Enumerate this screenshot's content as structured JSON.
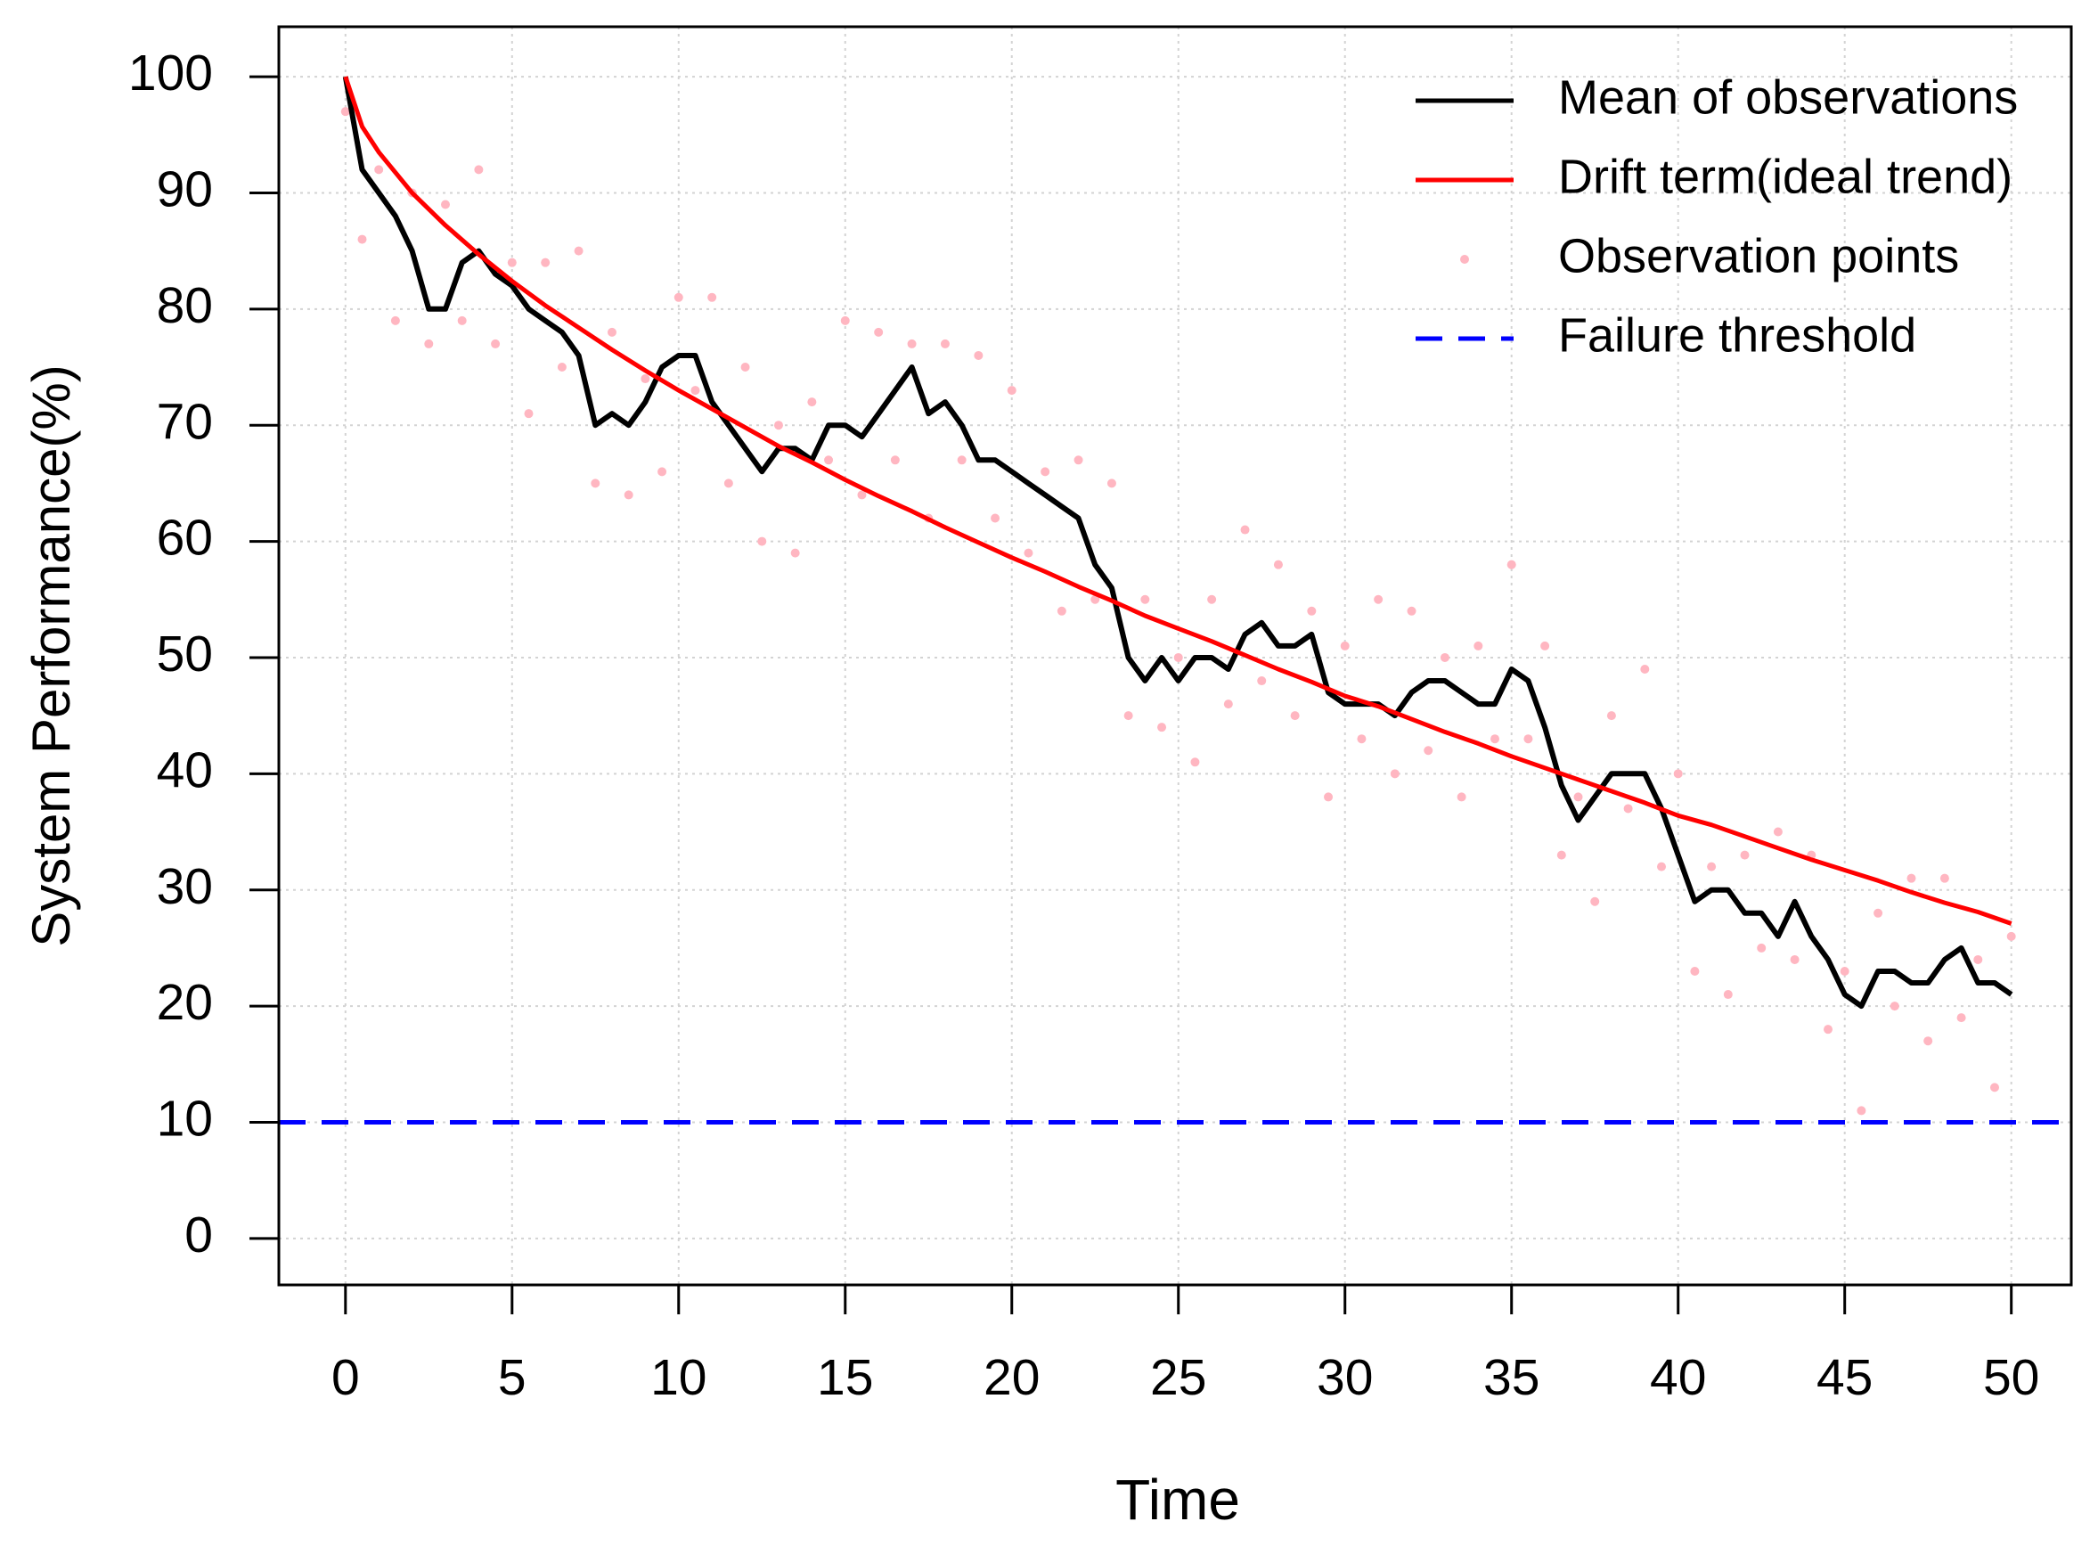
{
  "chart_data": {
    "type": "line",
    "xlabel": "Time",
    "ylabel": "System Performance(%)",
    "xlim": [
      -2,
      51.8
    ],
    "ylim": [
      -4,
      104.3
    ],
    "xticks": [
      0,
      5,
      10,
      15,
      20,
      25,
      30,
      35,
      40,
      45,
      50
    ],
    "yticks": [
      0,
      10,
      20,
      30,
      40,
      50,
      60,
      70,
      80,
      90,
      100
    ],
    "grid": true,
    "legend": "upper right",
    "series": [
      {
        "name": "Mean of observations",
        "color": "#000000",
        "kind": "line",
        "x": [
          0,
          0.5,
          1,
          1.5,
          2,
          2.5,
          3,
          3.5,
          4,
          4.5,
          5,
          5.5,
          6,
          6.5,
          7,
          7.5,
          8,
          8.5,
          9,
          9.5,
          10,
          10.5,
          11,
          11.5,
          12,
          12.5,
          13,
          13.5,
          14,
          14.5,
          15,
          15.5,
          16,
          16.5,
          17,
          17.5,
          18,
          18.5,
          19,
          19.5,
          20,
          20.5,
          21,
          21.5,
          22,
          22.5,
          23,
          23.5,
          24,
          24.5,
          25,
          25.5,
          26,
          26.5,
          27,
          27.5,
          28,
          28.5,
          29,
          29.5,
          30,
          30.5,
          31,
          31.5,
          32,
          32.5,
          33,
          33.5,
          34,
          34.5,
          35,
          35.5,
          36,
          36.5,
          37,
          37.5,
          38,
          38.5,
          39,
          39.5,
          40,
          40.5,
          41,
          41.5,
          42,
          42.5,
          43,
          43.5,
          44,
          44.5,
          45,
          45.5,
          46,
          46.5,
          47,
          47.5,
          48,
          48.5,
          49,
          49.5,
          50
        ],
        "values": [
          100,
          92,
          90,
          88,
          85,
          80,
          80,
          84,
          85,
          83,
          82,
          80,
          79,
          78,
          76,
          70,
          71,
          70,
          72,
          75,
          76,
          76,
          72,
          70,
          68,
          66,
          68,
          68,
          67,
          70,
          70,
          69,
          71,
          73,
          75,
          71,
          72,
          70,
          67,
          67,
          66,
          65,
          64,
          63,
          62,
          58,
          56,
          50,
          48,
          50,
          48,
          50,
          50,
          49,
          52,
          53,
          51,
          51,
          52,
          47,
          46,
          46,
          46,
          45,
          47,
          48,
          48,
          47,
          46,
          46,
          49,
          48,
          44,
          39,
          36,
          38,
          40,
          40,
          40,
          37,
          33,
          29,
          30,
          30,
          28,
          28,
          26,
          29,
          26,
          24,
          21,
          20,
          23,
          23,
          22,
          22,
          24,
          25,
          22,
          22,
          21
        ]
      },
      {
        "name": "Drift term(ideal trend)",
        "color": "#ff0000",
        "kind": "line",
        "x": [
          0,
          0.5,
          1,
          2,
          3,
          4,
          5,
          6,
          7,
          8,
          9,
          10,
          11,
          12,
          13,
          14,
          15,
          16,
          17,
          18,
          19,
          20,
          21,
          22,
          23,
          24,
          25,
          26,
          27,
          28,
          29,
          30,
          31,
          32,
          33,
          34,
          35,
          36,
          37,
          38,
          39,
          40,
          41,
          42,
          43,
          44,
          45,
          46,
          47,
          48,
          49,
          50
        ],
        "values": [
          100,
          95.7,
          93.5,
          90.0,
          87.2,
          84.7,
          82.4,
          80.3,
          78.4,
          76.5,
          74.7,
          73.0,
          71.4,
          69.8,
          68.2,
          66.8,
          65.3,
          63.9,
          62.6,
          61.2,
          59.9,
          58.6,
          57.4,
          56.1,
          54.9,
          53.6,
          52.5,
          51.4,
          50.2,
          49.0,
          47.9,
          46.7,
          45.8,
          44.7,
          43.6,
          42.6,
          41.5,
          40.5,
          39.5,
          38.5,
          37.5,
          36.4,
          35.6,
          34.6,
          33.6,
          32.6,
          31.7,
          30.8,
          29.8,
          28.9,
          28.1,
          27.1
        ]
      },
      {
        "name": "Observation points",
        "color": "#ffb6c1",
        "kind": "points",
        "x": [
          0,
          0.5,
          1,
          1.5,
          2,
          2.5,
          3,
          3.5,
          4,
          4.5,
          5,
          5.5,
          6,
          6.5,
          7,
          7.5,
          8,
          8.5,
          9,
          9.5,
          10,
          10.5,
          11,
          11.5,
          12,
          12.5,
          13,
          13.5,
          14,
          14.5,
          15,
          15.5,
          16,
          16.5,
          17,
          17.5,
          18,
          18.5,
          19,
          19.5,
          20,
          20.5,
          21,
          21.5,
          22,
          22.5,
          23,
          23.5,
          24,
          24.5,
          25,
          25.5,
          26,
          26.5,
          27,
          27.5,
          28,
          28.5,
          29,
          29.5,
          30,
          30.5,
          31,
          31.5,
          32,
          32.5,
          33,
          33.5,
          34,
          34.5,
          35,
          35.5,
          36,
          36.5,
          37,
          37.5,
          38,
          38.5,
          39,
          39.5,
          40,
          40.5,
          41,
          41.5,
          42,
          42.5,
          43,
          43.5,
          44,
          44.5,
          45,
          45.5,
          46,
          46.5,
          47,
          47.5,
          48,
          48.5,
          49,
          49.5,
          50
        ],
        "values": [
          97,
          86,
          92,
          79,
          90,
          77,
          89,
          79,
          92,
          77,
          84,
          71,
          84,
          75,
          85,
          65,
          78,
          64,
          74,
          66,
          81,
          73,
          81,
          65,
          75,
          60,
          70,
          59,
          72,
          67,
          79,
          64,
          78,
          67,
          77,
          62,
          77,
          67,
          76,
          62,
          73,
          59,
          66,
          54,
          67,
          55,
          65,
          45,
          55,
          44,
          50,
          41,
          55,
          46,
          61,
          48,
          58,
          45,
          54,
          38,
          51,
          43,
          55,
          40,
          54,
          42,
          50,
          38,
          51,
          43,
          58,
          43,
          51,
          33,
          38,
          29,
          45,
          37,
          49,
          32,
          40,
          23,
          32,
          21,
          33,
          25,
          35,
          24,
          33,
          18,
          23,
          11,
          28,
          20,
          31,
          17,
          31,
          19,
          24,
          13,
          26
        ]
      },
      {
        "name": "Failure threshold",
        "color": "#0000ff",
        "kind": "hline",
        "dashed": true,
        "values": [
          10
        ]
      }
    ]
  }
}
